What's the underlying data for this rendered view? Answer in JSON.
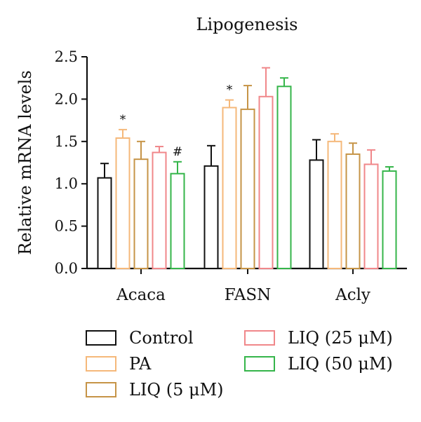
{
  "colors": {
    "Control": "#111111",
    "PA": "#f5b87a",
    "LIQ (5 μM)": "#c69447",
    "LIQ (25 μM)": "#f0878a",
    "LIQ (50 μM)": "#35b54a"
  },
  "chart_data": {
    "type": "bar",
    "title": "Lipogenesis",
    "xlabel": "",
    "ylabel": "Relative mRNA levels",
    "ylim": [
      0,
      2.5
    ],
    "yticks": [
      "0.0",
      "0.5",
      "1.0",
      "1.5",
      "2.0",
      "2.5"
    ],
    "categories": [
      "Acaca",
      "FASN",
      "Acly"
    ],
    "grid": false,
    "legend_position": "bottom",
    "series": [
      {
        "name": "Control",
        "values": [
          1.07,
          1.21,
          1.28
        ],
        "errors": [
          0.17,
          0.24,
          0.24
        ]
      },
      {
        "name": "PA",
        "values": [
          1.54,
          1.9,
          1.5
        ],
        "errors": [
          0.1,
          0.09,
          0.09
        ]
      },
      {
        "name": "LIQ (5 μM)",
        "values": [
          1.29,
          1.88,
          1.35
        ],
        "errors": [
          0.21,
          0.28,
          0.13
        ]
      },
      {
        "name": "LIQ (25 μM)",
        "values": [
          1.37,
          2.03,
          1.23
        ],
        "errors": [
          0.07,
          0.34,
          0.17
        ]
      },
      {
        "name": "LIQ (50 μM)",
        "values": [
          1.12,
          2.15,
          1.15
        ],
        "errors": [
          0.14,
          0.1,
          0.05
        ]
      }
    ],
    "annotations": [
      {
        "text": "*",
        "category": "Acaca",
        "series": "PA"
      },
      {
        "text": "#",
        "category": "Acaca",
        "series": "LIQ (50 μM)"
      },
      {
        "text": "*",
        "category": "FASN",
        "series": "PA"
      }
    ]
  }
}
